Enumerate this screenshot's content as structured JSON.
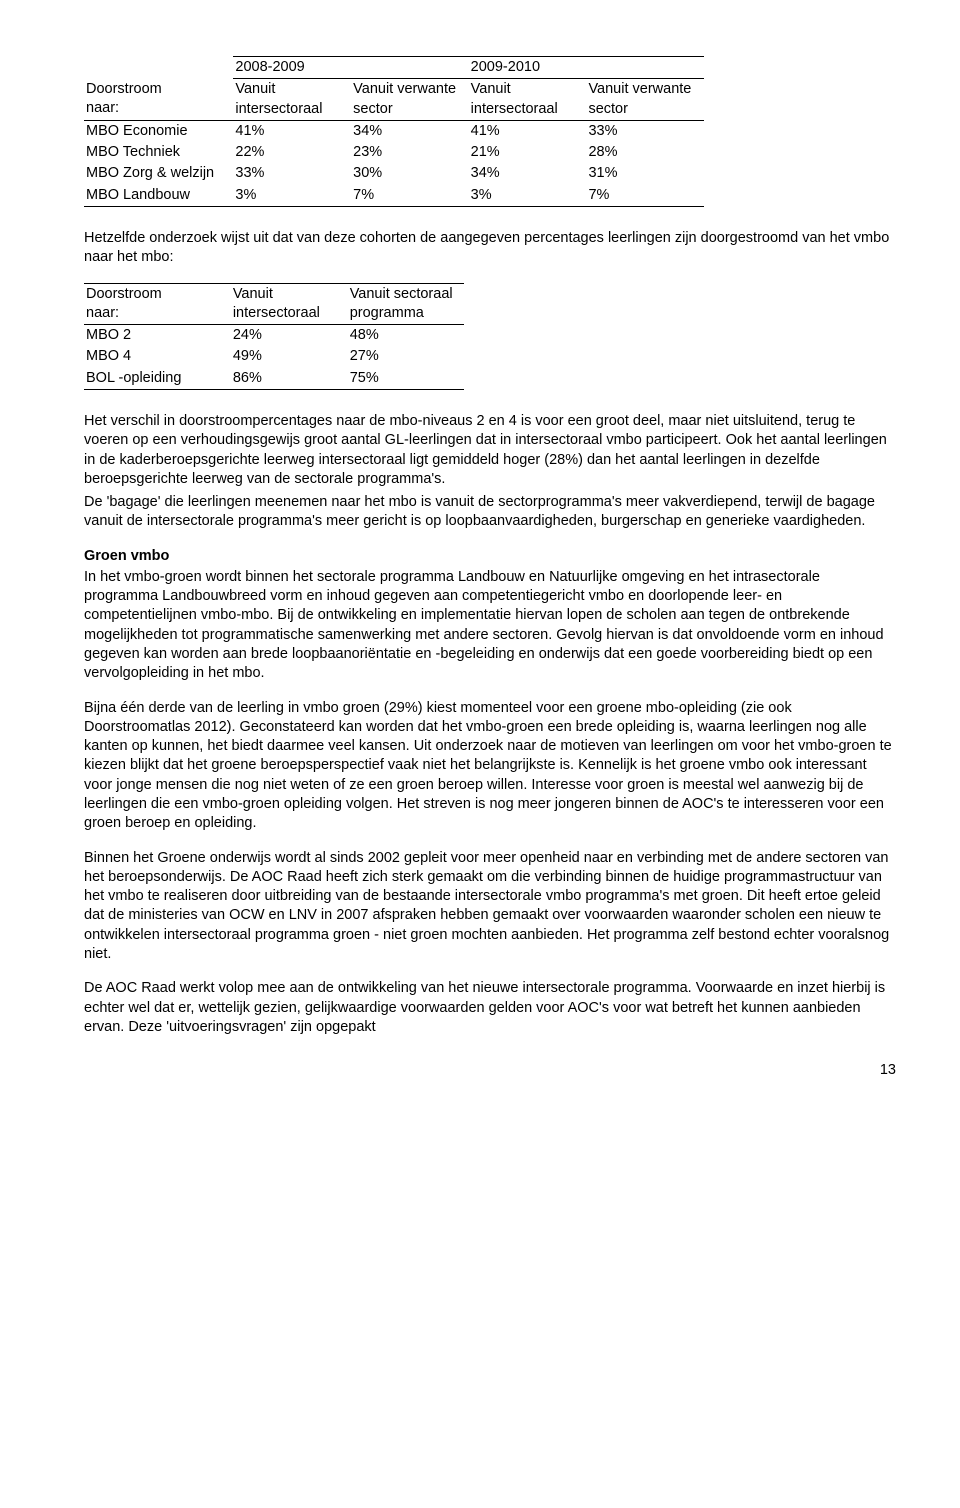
{
  "table1": {
    "group_headers": [
      "2008-2009",
      "2009-2010"
    ],
    "sub_headers": {
      "rowlabel_line1": "Doorstroom",
      "rowlabel_line2": "naar:",
      "col1_line1": "Vanuit",
      "col1_line2": "intersectoraal",
      "col2_line1": "Vanuit verwante",
      "col2_line2": "sector",
      "col3_line1": "Vanuit",
      "col3_line2": "intersectoraal",
      "col4_line1": "Vanuit verwante",
      "col4_line2": "sector"
    },
    "rows": [
      {
        "label": "MBO Economie",
        "v1": "41%",
        "v2": "34%",
        "v3": "41%",
        "v4": "33%"
      },
      {
        "label": "MBO Techniek",
        "v1": "22%",
        "v2": "23%",
        "v3": "21%",
        "v4": "28%"
      },
      {
        "label": "MBO Zorg & welzijn",
        "v1": "33%",
        "v2": "30%",
        "v3": "34%",
        "v4": "31%"
      },
      {
        "label": "MBO Landbouw",
        "v1": "3%",
        "v2": "7%",
        "v3": "3%",
        "v4": "7%"
      }
    ]
  },
  "para1": "Hetzelfde onderzoek wijst uit dat van deze cohorten de aangegeven percentages leerlingen zijn doorgestroomd van het vmbo naar het mbo:",
  "table2": {
    "headers": {
      "rowlabel_line1": "Doorstroom",
      "rowlabel_line2": "naar:",
      "col1_line1": "Vanuit",
      "col1_line2": "intersectoraal",
      "col2_line1": "Vanuit sectoraal",
      "col2_line2": "programma"
    },
    "rows": [
      {
        "label": "MBO 2",
        "v1": "24%",
        "v2": "48%"
      },
      {
        "label": "MBO 4",
        "v1": "49%",
        "v2": "27%"
      },
      {
        "label": "BOL -opleiding",
        "v1": "86%",
        "v2": "75%"
      }
    ]
  },
  "para2": "Het verschil in doorstroompercentages naar de mbo-niveaus 2 en 4 is voor een groot deel, maar niet uitsluitend, terug te voeren op een verhoudingsgewijs groot aantal GL-leerlingen dat in intersectoraal vmbo participeert. Ook het aantal leerlingen in de kaderberoepsgerichte leerweg intersectoraal ligt gemiddeld hoger (28%) dan het aantal leerlingen in dezelfde beroepsgerichte leerweg van de sectorale programma's.",
  "para3": "De 'bagage' die leerlingen meenemen naar het mbo is vanuit de sectorprogramma's meer vakverdiepend, terwijl de bagage vanuit de intersectorale programma's meer gericht is op loopbaanvaardigheden, burgerschap en generieke vaardigheden.",
  "section_title": "Groen vmbo",
  "para4": "In het vmbo-groen wordt binnen het sectorale programma Landbouw en Natuurlijke omgeving en het intrasectorale programma Landbouwbreed vorm en inhoud gegeven aan competentiegericht vmbo en doorlopende leer- en competentielijnen vmbo-mbo. Bij de ontwikkeling en implementatie hiervan lopen de scholen aan tegen de ontbrekende mogelijkheden tot programmatische samenwerking met andere sectoren. Gevolg hiervan is dat onvoldoende vorm en inhoud gegeven kan worden aan brede loopbaanoriëntatie en -begeleiding en onderwijs dat een goede voorbereiding biedt op een vervolgopleiding in het mbo.",
  "para5": "Bijna één derde van de leerling in vmbo groen (29%) kiest momenteel voor een groene mbo-opleiding (zie ook Doorstroomatlas 2012). Geconstateerd kan worden dat het vmbo-groen een brede opleiding is, waarna leerlingen nog alle kanten op kunnen, het biedt daarmee veel kansen. Uit onderzoek naar de motieven van leerlingen om voor het vmbo-groen te kiezen blijkt dat het groene beroepsperspectief vaak niet het belangrijkste is. Kennelijk is het groene vmbo ook interessant voor jonge mensen die nog niet weten of ze een groen beroep willen. Interesse voor groen is meestal wel aanwezig bij de leerlingen die een vmbo-groen opleiding volgen. Het streven is nog meer jongeren binnen de AOC's te interesseren voor een groen beroep en opleiding.",
  "para6": "Binnen het Groene onderwijs wordt al sinds 2002 gepleit voor meer openheid naar en verbinding met de andere sectoren van het beroepsonderwijs. De AOC Raad heeft zich sterk gemaakt om die verbinding binnen de huidige programmastructuur van het vmbo te realiseren door uitbreiding van de bestaande intersectorale vmbo programma's met groen. Dit heeft ertoe geleid dat de ministeries van OCW en LNV in 2007 afspraken hebben gemaakt over voorwaarden waaronder scholen een nieuw te ontwikkelen intersectoraal programma groen - niet groen mochten aanbieden. Het programma zelf bestond echter vooralsnog niet.",
  "para7": "De AOC Raad werkt volop mee aan de ontwikkeling van het nieuwe intersectorale programma. Voorwaarde en inzet hierbij is echter wel dat er, wettelijk gezien, gelijkwaardige voorwaarden gelden voor AOC's voor wat betreft het kunnen aanbieden ervan. Deze 'uitvoeringsvragen' zijn opgepakt",
  "page_number": "13"
}
